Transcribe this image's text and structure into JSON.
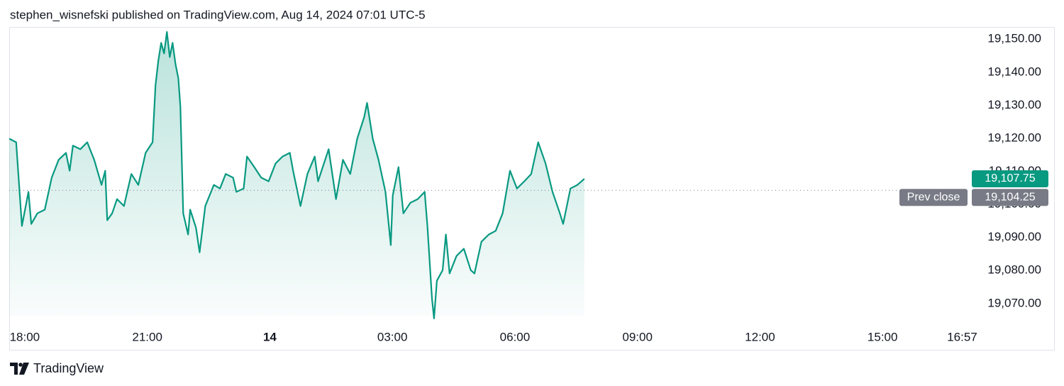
{
  "header": {
    "byline": "stephen_wisnefski published on TradingView.com, Aug 14, 2024 07:01 UTC-5"
  },
  "chart_data": {
    "type": "area",
    "color": "#089981",
    "x": [
      -0.38,
      -0.21,
      -0.07,
      0.09,
      0.16,
      0.31,
      0.49,
      0.66,
      0.83,
      1.01,
      1.1,
      1.18,
      1.36,
      1.53,
      1.7,
      1.88,
      1.97,
      2.02,
      2.14,
      2.26,
      2.43,
      2.61,
      2.78,
      2.96,
      3.13,
      3.2,
      3.27,
      3.34,
      3.41,
      3.48,
      3.55,
      3.62,
      3.69,
      3.76,
      3.81,
      3.88,
      4.0,
      4.05,
      4.19,
      4.28,
      4.42,
      4.63,
      4.78,
      4.92,
      5.1,
      5.18,
      5.36,
      5.44,
      5.62,
      5.79,
      5.97,
      6.14,
      6.31,
      6.49,
      6.57,
      6.75,
      6.92,
      7.1,
      7.18,
      7.44,
      7.62,
      7.79,
      7.97,
      8.14,
      8.31,
      8.38,
      8.52,
      8.66,
      8.83,
      8.96,
      9.01,
      9.15,
      9.27,
      9.44,
      9.62,
      9.79,
      9.86,
      9.97,
      10.02,
      10.09,
      10.23,
      10.31,
      10.4,
      10.57,
      10.75,
      10.92,
      11.01,
      11.18,
      11.36,
      11.53,
      11.7,
      11.88,
      12.05,
      12.23,
      12.4,
      12.57,
      12.75,
      12.92,
      13.1,
      13.18,
      13.36,
      13.53,
      13.7
    ],
    "values": [
      19119.9,
      19118.8,
      19093.5,
      19103.8,
      19094.1,
      19097.3,
      19098.4,
      19108.1,
      19113.5,
      19115.6,
      19110.2,
      19117.8,
      19116.7,
      19118.8,
      19113.5,
      19105.9,
      19110.2,
      19095.2,
      19097.3,
      19101.6,
      19099.5,
      19109.2,
      19105.9,
      19115.6,
      19118.8,
      19136.0,
      19143.5,
      19148.9,
      19145.7,
      19152.2,
      19144.6,
      19148.9,
      19142.5,
      19138.2,
      19129.6,
      19097.3,
      19090.9,
      19098.4,
      19093.0,
      19085.5,
      19099.5,
      19105.9,
      19104.8,
      19109.2,
      19108.1,
      19103.8,
      19104.8,
      19114.5,
      19111.3,
      19108.1,
      19107.0,
      19112.4,
      19114.5,
      19115.6,
      19110.2,
      19099.5,
      19109.2,
      19114.5,
      19107.0,
      19116.7,
      19101.6,
      19113.5,
      19109.2,
      19119.9,
      19126.4,
      19130.7,
      19119.9,
      19113.5,
      19103.8,
      19087.7,
      19102.7,
      19111.3,
      19097.3,
      19100.5,
      19101.6,
      19103.8,
      19093.0,
      19071.5,
      19065.5,
      19076.9,
      19080.1,
      19090.9,
      19079.1,
      19084.4,
      19086.6,
      19080.1,
      19079.1,
      19088.7,
      19090.9,
      19092.0,
      19097.3,
      19110.2,
      19104.8,
      19107.0,
      19109.2,
      19118.8,
      19112.4,
      19103.8,
      19097.3,
      19094.1,
      19104.8,
      19105.9,
      19107.75
    ],
    "last_value_label": "19,107.75",
    "xlim": [
      -0.38,
      23.15
    ],
    "ylim": [
      19056,
      19153.7
    ],
    "xticks": [
      {
        "value": 0,
        "label": "18:00"
      },
      {
        "value": 3,
        "label": "21:00"
      },
      {
        "value": 6,
        "label": "14"
      },
      {
        "value": 9,
        "label": "03:00"
      },
      {
        "value": 12,
        "label": "06:00"
      },
      {
        "value": 15,
        "label": "09:00"
      },
      {
        "value": 18,
        "label": "12:00"
      },
      {
        "value": 21,
        "label": "15:00"
      },
      {
        "value": 22.95,
        "label": "16:57"
      }
    ],
    "yticks": [
      {
        "value": 19070,
        "label": "19,070.00"
      },
      {
        "value": 19080,
        "label": "19,080.00"
      },
      {
        "value": 19090,
        "label": "19,090.00"
      },
      {
        "value": 19100,
        "label": "19,100.00"
      },
      {
        "value": 19110,
        "label": "19,110.00"
      },
      {
        "value": 19120,
        "label": "19,120.00"
      },
      {
        "value": 19130,
        "label": "19,130.00"
      },
      {
        "value": 19140,
        "label": "19,140.00"
      },
      {
        "value": 19150,
        "label": "19,150.00"
      }
    ],
    "prev_close": {
      "name": "Prev close",
      "value": 19104.25,
      "label": "19,104.25"
    }
  },
  "footer": {
    "brand": "TradingView"
  }
}
